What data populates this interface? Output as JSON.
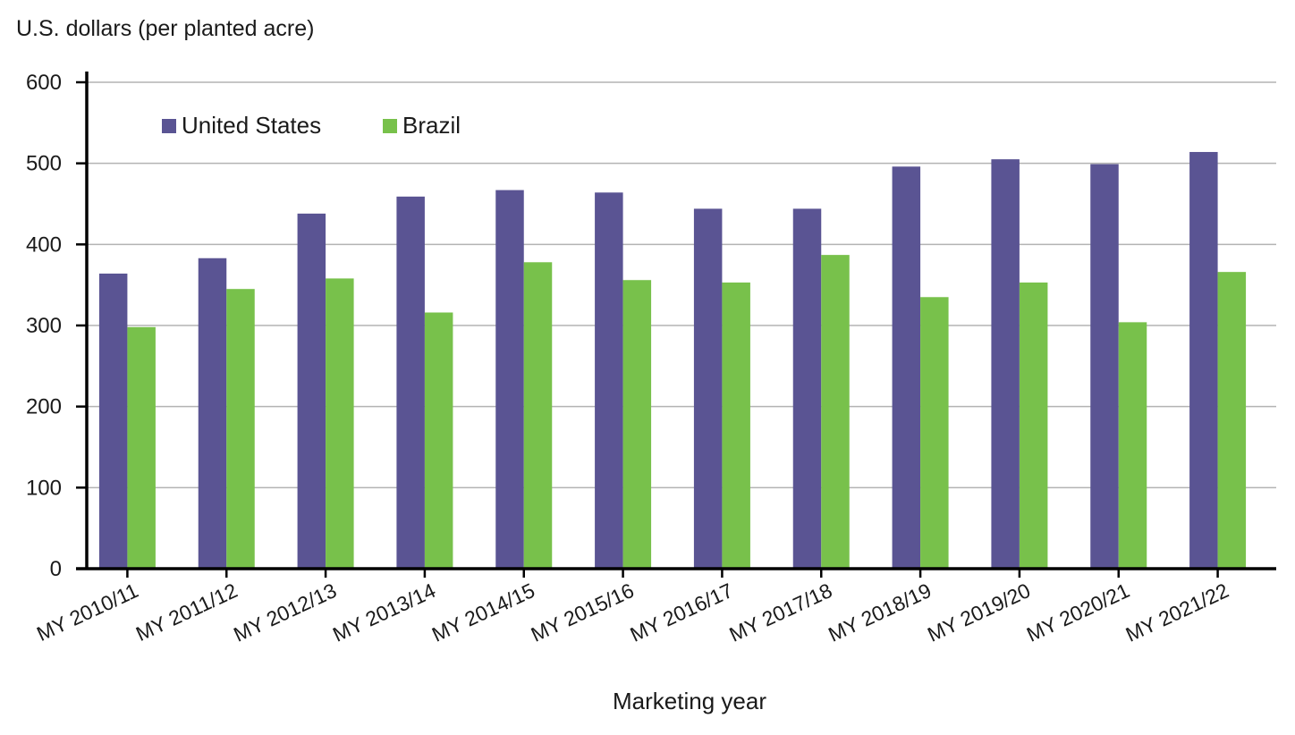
{
  "chart_data": {
    "type": "bar",
    "title": "",
    "ylabel": "U.S. dollars (per planted acre)",
    "xlabel": "Marketing year",
    "ylim": [
      0,
      600
    ],
    "yticks": [
      0,
      100,
      200,
      300,
      400,
      500,
      600
    ],
    "grid": true,
    "legend_position": "top-left",
    "categories": [
      "MY 2010/11",
      "MY 2011/12",
      "MY 2012/13",
      "MY 2013/14",
      "MY 2014/15",
      "MY 2015/16",
      "MY 2016/17",
      "MY 2017/18",
      "MY 2018/19",
      "MY 2019/20",
      "MY 2020/21",
      "MY 2021/22"
    ],
    "series": [
      {
        "name": "United States",
        "color": "#5a5493",
        "values": [
          364,
          383,
          438,
          459,
          467,
          464,
          444,
          444,
          496,
          505,
          499,
          514
        ]
      },
      {
        "name": "Brazil",
        "color": "#78c14b",
        "values": [
          298,
          345,
          358,
          316,
          378,
          356,
          353,
          387,
          335,
          353,
          304,
          366
        ]
      }
    ]
  }
}
